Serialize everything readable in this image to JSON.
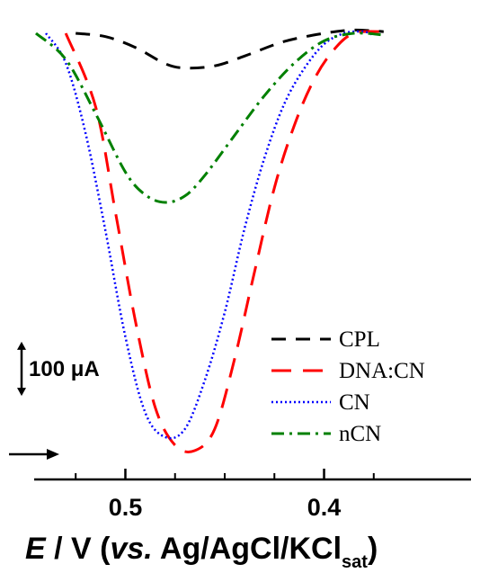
{
  "chart_data": {
    "type": "line",
    "title": "",
    "xlabel_parts": {
      "e": "E",
      "unit": " / V (",
      "vs": "vs.",
      "ref": " Ag/AgCl/KCl",
      "sub": "sat",
      "close": ")"
    },
    "ylabel": "",
    "x_reversed": true,
    "xlim": [
      0.545,
      0.355
    ],
    "ylim": [
      -810,
      20
    ],
    "x_ticks": [
      0.5,
      0.4
    ],
    "x_tick_labels": [
      "0.5",
      "0.4"
    ],
    "scale_bar_label": "100 μA",
    "scale_bar_value": 100,
    "scan_direction": "arrow pointing right (toward lower potential)",
    "legend_placement": "lower-right",
    "series": [
      {
        "name": "CPL",
        "color": "#000000",
        "dash": "dashed",
        "x": [
          0.525,
          0.51,
          0.495,
          0.48,
          0.47,
          0.455,
          0.44,
          0.42,
          0.4,
          0.385,
          0.37
        ],
        "y": [
          0,
          -6,
          -26,
          -56,
          -64,
          -60,
          -42,
          -15,
          0,
          6,
          3
        ]
      },
      {
        "name": "DNA:CN",
        "color": "#ff0000",
        "dash": "long-dashed",
        "x": [
          0.53,
          0.515,
          0.505,
          0.495,
          0.485,
          0.475,
          0.465,
          0.455,
          0.445,
          0.435,
          0.425,
          0.415,
          0.405,
          0.395,
          0.385,
          0.37
        ],
        "y": [
          0,
          -135,
          -330,
          -530,
          -690,
          -760,
          -770,
          -730,
          -600,
          -440,
          -285,
          -170,
          -85,
          -30,
          0,
          3
        ]
      },
      {
        "name": "CN",
        "color": "#0000ff",
        "dash": "dotted",
        "x": [
          0.54,
          0.53,
          0.52,
          0.51,
          0.5,
          0.49,
          0.48,
          0.47,
          0.46,
          0.45,
          0.44,
          0.43,
          0.42,
          0.41,
          0.4,
          0.39,
          0.38,
          0.375
        ],
        "y": [
          0,
          -55,
          -185,
          -365,
          -560,
          -700,
          -745,
          -730,
          -640,
          -515,
          -360,
          -230,
          -130,
          -65,
          -20,
          0,
          3,
          -4
        ]
      },
      {
        "name": "nCN",
        "color": "#008000",
        "dash": "dash-dot",
        "x": [
          0.545,
          0.53,
          0.515,
          0.5,
          0.49,
          0.48,
          0.47,
          0.46,
          0.445,
          0.43,
          0.415,
          0.4,
          0.385,
          0.37
        ],
        "y": [
          0,
          -48,
          -148,
          -256,
          -298,
          -312,
          -300,
          -262,
          -188,
          -115,
          -55,
          -14,
          0,
          -3
        ]
      }
    ]
  }
}
